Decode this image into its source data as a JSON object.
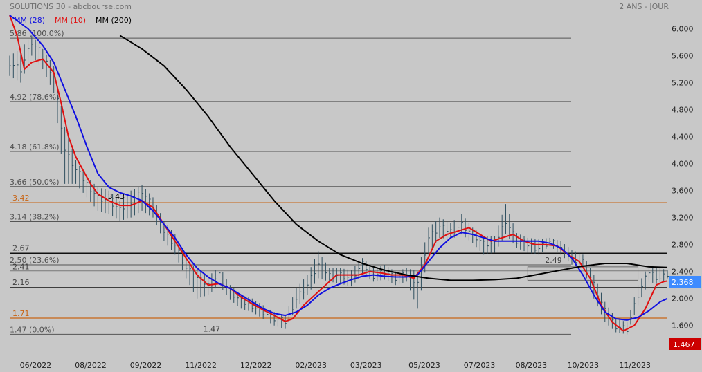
{
  "header": {
    "title": "SOLUTIONS 30 - abcbourse.com",
    "period": "2 ANS - JOUR"
  },
  "colors": {
    "background": "#c8c8c8",
    "mm28": "#1010e0",
    "mm10": "#e01010",
    "mm200": "#000000",
    "candles": "#2f4f5f",
    "fib": "#555555",
    "sr": "#c86414",
    "last_badge": "#3d8bff",
    "low_badge": "#cc0000"
  },
  "chart_data": {
    "type": "line",
    "title": "SOLUTIONS 30 - abcbourse.com",
    "ylim": [
      1.3,
      6.2
    ],
    "yticks": [
      "6.000",
      "5.600",
      "5.200",
      "4.800",
      "4.400",
      "4.000",
      "3.600",
      "3.200",
      "2.800",
      "2.400",
      "2.000",
      "1.600"
    ],
    "xticks": [
      "06/2022",
      "08/2022",
      "09/2022",
      "11/2022",
      "12/2022",
      "02/2023",
      "03/2023",
      "05/2023",
      "07/2023",
      "08/2023",
      "10/2023",
      "11/2023"
    ],
    "legend": [
      "MM (28)",
      "MM (10)",
      "MM (200)"
    ],
    "fib_levels": [
      {
        "value": 5.86,
        "label": "5.86  (100.0%)"
      },
      {
        "value": 4.92,
        "label": "4.92  (78.6%)"
      },
      {
        "value": 4.18,
        "label": "4.18  (61.8%)"
      },
      {
        "value": 3.66,
        "label": "3.66  (50.0%)"
      },
      {
        "value": 3.14,
        "label": "3.14  (38.2%)"
      },
      {
        "value": 2.5,
        "label": "2.50  (23.6%)"
      },
      {
        "value": 1.47,
        "label": "1.47  (0.0%)"
      }
    ],
    "support_lines": [
      {
        "value": 3.42,
        "label": "3.42"
      },
      {
        "value": 1.71,
        "label": "1.71"
      }
    ],
    "bold_lines": [
      {
        "value": 2.67,
        "label": "2.67"
      },
      {
        "value": 2.16,
        "label": "2.16"
      }
    ],
    "thin_lines": [
      {
        "value": 2.41,
        "label": "2.41"
      }
    ],
    "annotations": [
      {
        "value": 3.43,
        "x": 29,
        "text": "3.43"
      },
      {
        "value": 1.47,
        "x": 55,
        "text": "1.47"
      },
      {
        "value": 2.49,
        "x": 148,
        "text": "2.49"
      }
    ],
    "last_value": "2.368",
    "low_value": "1.467",
    "ma_box": {
      "x0": 141,
      "x1": 171,
      "y0": 2.27,
      "y1": 2.47
    },
    "x_count": 180,
    "price_close": [
      [
        0,
        5.5
      ],
      [
        3,
        5.4
      ],
      [
        6,
        5.8
      ],
      [
        9,
        5.6
      ],
      [
        12,
        5.3
      ],
      [
        15,
        4.2
      ],
      [
        18,
        3.9
      ],
      [
        21,
        3.7
      ],
      [
        24,
        3.5
      ],
      [
        27,
        3.45
      ],
      [
        30,
        3.3
      ],
      [
        33,
        3.45
      ],
      [
        36,
        3.6
      ],
      [
        39,
        3.35
      ],
      [
        42,
        3.0
      ],
      [
        45,
        2.8
      ],
      [
        48,
        2.45
      ],
      [
        51,
        2.3
      ],
      [
        54,
        2.2
      ],
      [
        57,
        2.35
      ],
      [
        60,
        2.1
      ],
      [
        63,
        1.95
      ],
      [
        66,
        1.9
      ],
      [
        69,
        1.8
      ],
      [
        72,
        1.7
      ],
      [
        75,
        1.65
      ],
      [
        78,
        2.0
      ],
      [
        81,
        2.2
      ],
      [
        84,
        2.5
      ],
      [
        87,
        2.35
      ],
      [
        90,
        2.35
      ],
      [
        93,
        2.3
      ],
      [
        96,
        2.5
      ],
      [
        99,
        2.35
      ],
      [
        102,
        2.4
      ],
      [
        105,
        2.3
      ],
      [
        108,
        2.35
      ],
      [
        111,
        2.25
      ],
      [
        114,
        2.9
      ],
      [
        117,
        3.05
      ],
      [
        120,
        3.0
      ],
      [
        123,
        3.1
      ],
      [
        126,
        2.95
      ],
      [
        129,
        2.8
      ],
      [
        132,
        2.8
      ],
      [
        135,
        3.15
      ],
      [
        138,
        2.85
      ],
      [
        141,
        2.8
      ],
      [
        144,
        2.75
      ],
      [
        147,
        2.85
      ],
      [
        150,
        2.75
      ],
      [
        153,
        2.6
      ],
      [
        156,
        2.55
      ],
      [
        159,
        2.2
      ],
      [
        162,
        1.8
      ],
      [
        165,
        1.6
      ],
      [
        168,
        1.55
      ],
      [
        171,
        2.05
      ],
      [
        174,
        2.4
      ],
      [
        177,
        2.3
      ],
      [
        179,
        2.37
      ]
    ],
    "price_high": [
      [
        0,
        5.6
      ],
      [
        3,
        5.7
      ],
      [
        6,
        5.9
      ],
      [
        9,
        5.7
      ],
      [
        12,
        5.45
      ],
      [
        15,
        4.55
      ],
      [
        18,
        4.05
      ],
      [
        21,
        3.8
      ],
      [
        24,
        3.65
      ],
      [
        27,
        3.6
      ],
      [
        30,
        3.45
      ],
      [
        33,
        3.6
      ],
      [
        36,
        3.68
      ],
      [
        39,
        3.5
      ],
      [
        42,
        3.15
      ],
      [
        45,
        2.95
      ],
      [
        48,
        2.6
      ],
      [
        51,
        2.42
      ],
      [
        54,
        2.32
      ],
      [
        57,
        2.48
      ],
      [
        60,
        2.2
      ],
      [
        63,
        2.05
      ],
      [
        66,
        2.0
      ],
      [
        69,
        1.9
      ],
      [
        72,
        1.8
      ],
      [
        75,
        1.75
      ],
      [
        78,
        2.15
      ],
      [
        81,
        2.35
      ],
      [
        84,
        2.7
      ],
      [
        87,
        2.45
      ],
      [
        90,
        2.45
      ],
      [
        93,
        2.42
      ],
      [
        96,
        2.6
      ],
      [
        99,
        2.45
      ],
      [
        102,
        2.5
      ],
      [
        105,
        2.4
      ],
      [
        108,
        2.45
      ],
      [
        111,
        2.4
      ],
      [
        114,
        3.05
      ],
      [
        117,
        3.2
      ],
      [
        120,
        3.12
      ],
      [
        123,
        3.25
      ],
      [
        126,
        3.05
      ],
      [
        129,
        2.92
      ],
      [
        132,
        2.92
      ],
      [
        135,
        3.4
      ],
      [
        138,
        2.97
      ],
      [
        141,
        2.9
      ],
      [
        144,
        2.88
      ],
      [
        147,
        2.9
      ],
      [
        150,
        2.85
      ],
      [
        153,
        2.72
      ],
      [
        156,
        2.65
      ],
      [
        159,
        2.35
      ],
      [
        162,
        1.95
      ],
      [
        165,
        1.7
      ],
      [
        168,
        1.65
      ],
      [
        171,
        2.2
      ],
      [
        174,
        2.5
      ],
      [
        177,
        2.45
      ],
      [
        179,
        2.42
      ]
    ],
    "price_low": [
      [
        0,
        5.3
      ],
      [
        3,
        5.2
      ],
      [
        6,
        5.6
      ],
      [
        9,
        5.4
      ],
      [
        12,
        5.05
      ],
      [
        15,
        3.7
      ],
      [
        18,
        3.7
      ],
      [
        21,
        3.5
      ],
      [
        24,
        3.3
      ],
      [
        27,
        3.25
      ],
      [
        30,
        3.15
      ],
      [
        33,
        3.2
      ],
      [
        36,
        3.3
      ],
      [
        39,
        3.2
      ],
      [
        42,
        2.85
      ],
      [
        45,
        2.65
      ],
      [
        48,
        2.3
      ],
      [
        51,
        2.0
      ],
      [
        54,
        2.05
      ],
      [
        57,
        2.2
      ],
      [
        60,
        1.98
      ],
      [
        63,
        1.85
      ],
      [
        66,
        1.8
      ],
      [
        69,
        1.7
      ],
      [
        72,
        1.6
      ],
      [
        75,
        1.55
      ],
      [
        78,
        1.85
      ],
      [
        81,
        2.05
      ],
      [
        84,
        2.3
      ],
      [
        87,
        2.25
      ],
      [
        90,
        2.22
      ],
      [
        93,
        2.18
      ],
      [
        96,
        2.35
      ],
      [
        99,
        2.25
      ],
      [
        102,
        2.28
      ],
      [
        105,
        2.2
      ],
      [
        108,
        2.25
      ],
      [
        111,
        1.85
      ],
      [
        114,
        2.65
      ],
      [
        117,
        2.9
      ],
      [
        120,
        2.88
      ],
      [
        123,
        2.95
      ],
      [
        126,
        2.82
      ],
      [
        129,
        2.65
      ],
      [
        132,
        2.68
      ],
      [
        135,
        2.95
      ],
      [
        138,
        2.75
      ],
      [
        141,
        2.68
      ],
      [
        144,
        2.65
      ],
      [
        147,
        2.78
      ],
      [
        150,
        2.65
      ],
      [
        153,
        2.5
      ],
      [
        156,
        2.45
      ],
      [
        159,
        2.0
      ],
      [
        162,
        1.65
      ],
      [
        165,
        1.5
      ],
      [
        168,
        1.47
      ],
      [
        171,
        1.9
      ],
      [
        174,
        2.25
      ],
      [
        177,
        2.2
      ],
      [
        179,
        2.3
      ]
    ],
    "series": [
      {
        "name": "MM (10)",
        "points": [
          [
            0,
            6.2
          ],
          [
            2,
            5.9
          ],
          [
            4,
            5.4
          ],
          [
            6,
            5.5
          ],
          [
            9,
            5.55
          ],
          [
            12,
            5.35
          ],
          [
            14,
            4.9
          ],
          [
            16,
            4.4
          ],
          [
            18,
            4.1
          ],
          [
            20,
            3.9
          ],
          [
            22,
            3.7
          ],
          [
            24,
            3.55
          ],
          [
            27,
            3.45
          ],
          [
            30,
            3.38
          ],
          [
            33,
            3.38
          ],
          [
            36,
            3.45
          ],
          [
            39,
            3.35
          ],
          [
            42,
            3.1
          ],
          [
            45,
            2.85
          ],
          [
            48,
            2.6
          ],
          [
            51,
            2.35
          ],
          [
            54,
            2.2
          ],
          [
            57,
            2.22
          ],
          [
            60,
            2.15
          ],
          [
            63,
            2.02
          ],
          [
            66,
            1.92
          ],
          [
            69,
            1.83
          ],
          [
            72,
            1.75
          ],
          [
            75,
            1.66
          ],
          [
            77,
            1.7
          ],
          [
            80,
            1.9
          ],
          [
            83,
            2.05
          ],
          [
            86,
            2.2
          ],
          [
            89,
            2.35
          ],
          [
            92,
            2.35
          ],
          [
            95,
            2.35
          ],
          [
            98,
            2.4
          ],
          [
            101,
            2.38
          ],
          [
            104,
            2.35
          ],
          [
            107,
            2.35
          ],
          [
            110,
            2.3
          ],
          [
            113,
            2.5
          ],
          [
            116,
            2.85
          ],
          [
            119,
            2.95
          ],
          [
            122,
            3.0
          ],
          [
            125,
            3.05
          ],
          [
            128,
            2.95
          ],
          [
            131,
            2.85
          ],
          [
            134,
            2.9
          ],
          [
            137,
            2.95
          ],
          [
            140,
            2.85
          ],
          [
            143,
            2.8
          ],
          [
            146,
            2.8
          ],
          [
            149,
            2.78
          ],
          [
            152,
            2.65
          ],
          [
            155,
            2.55
          ],
          [
            158,
            2.3
          ],
          [
            161,
            1.9
          ],
          [
            164,
            1.65
          ],
          [
            167,
            1.52
          ],
          [
            170,
            1.6
          ],
          [
            173,
            1.85
          ],
          [
            176,
            2.2
          ],
          [
            178,
            2.25
          ],
          [
            179,
            2.26
          ]
        ]
      },
      {
        "name": "MM (28)",
        "points": [
          [
            0,
            6.2
          ],
          [
            5,
            6.0
          ],
          [
            9,
            5.75
          ],
          [
            12,
            5.5
          ],
          [
            15,
            5.1
          ],
          [
            18,
            4.7
          ],
          [
            21,
            4.25
          ],
          [
            24,
            3.85
          ],
          [
            27,
            3.65
          ],
          [
            30,
            3.57
          ],
          [
            33,
            3.52
          ],
          [
            36,
            3.45
          ],
          [
            39,
            3.3
          ],
          [
            42,
            3.1
          ],
          [
            45,
            2.9
          ],
          [
            48,
            2.65
          ],
          [
            51,
            2.45
          ],
          [
            54,
            2.32
          ],
          [
            57,
            2.22
          ],
          [
            60,
            2.15
          ],
          [
            63,
            2.05
          ],
          [
            66,
            1.95
          ],
          [
            69,
            1.85
          ],
          [
            72,
            1.78
          ],
          [
            75,
            1.75
          ],
          [
            78,
            1.8
          ],
          [
            81,
            1.9
          ],
          [
            84,
            2.05
          ],
          [
            87,
            2.15
          ],
          [
            90,
            2.22
          ],
          [
            93,
            2.28
          ],
          [
            96,
            2.33
          ],
          [
            99,
            2.35
          ],
          [
            102,
            2.33
          ],
          [
            105,
            2.32
          ],
          [
            108,
            2.32
          ],
          [
            111,
            2.35
          ],
          [
            114,
            2.55
          ],
          [
            117,
            2.75
          ],
          [
            120,
            2.9
          ],
          [
            123,
            2.98
          ],
          [
            126,
            2.95
          ],
          [
            129,
            2.9
          ],
          [
            132,
            2.85
          ],
          [
            135,
            2.85
          ],
          [
            138,
            2.85
          ],
          [
            141,
            2.85
          ],
          [
            144,
            2.85
          ],
          [
            147,
            2.82
          ],
          [
            150,
            2.75
          ],
          [
            153,
            2.6
          ],
          [
            156,
            2.35
          ],
          [
            159,
            2.05
          ],
          [
            162,
            1.8
          ],
          [
            165,
            1.7
          ],
          [
            168,
            1.68
          ],
          [
            171,
            1.72
          ],
          [
            174,
            1.82
          ],
          [
            177,
            1.95
          ],
          [
            179,
            2.0
          ]
        ]
      },
      {
        "name": "MM (200)",
        "points": [
          [
            30,
            5.9
          ],
          [
            36,
            5.7
          ],
          [
            42,
            5.45
          ],
          [
            48,
            5.1
          ],
          [
            54,
            4.7
          ],
          [
            60,
            4.25
          ],
          [
            66,
            3.85
          ],
          [
            72,
            3.45
          ],
          [
            78,
            3.1
          ],
          [
            84,
            2.85
          ],
          [
            90,
            2.65
          ],
          [
            96,
            2.52
          ],
          [
            102,
            2.42
          ],
          [
            108,
            2.35
          ],
          [
            114,
            2.3
          ],
          [
            120,
            2.27
          ],
          [
            126,
            2.27
          ],
          [
            132,
            2.28
          ],
          [
            138,
            2.3
          ],
          [
            144,
            2.36
          ],
          [
            150,
            2.42
          ],
          [
            156,
            2.48
          ],
          [
            162,
            2.52
          ],
          [
            168,
            2.52
          ],
          [
            174,
            2.47
          ],
          [
            179,
            2.46
          ]
        ]
      }
    ]
  }
}
